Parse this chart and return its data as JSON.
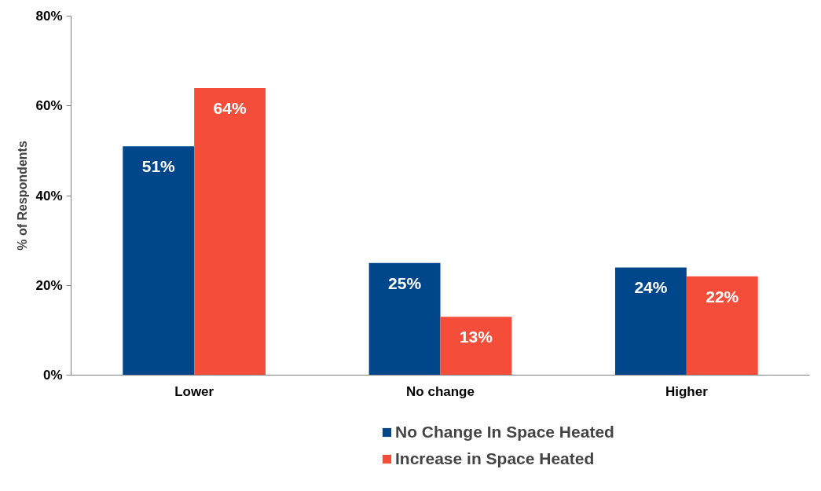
{
  "chart_data": {
    "type": "bar",
    "ylabel": "% of Respondents",
    "categories": [
      "Lower",
      "No change",
      "Higher"
    ],
    "series": [
      {
        "name": "No Change In Space Heated",
        "color": "#00468b",
        "values": [
          51,
          25,
          24
        ],
        "value_labels": [
          "51%",
          "25%",
          "24%"
        ]
      },
      {
        "name": "Increase in Space Heated",
        "color": "#f44e3a",
        "values": [
          64,
          13,
          22
        ],
        "value_labels": [
          "64%",
          "13%",
          "22%"
        ]
      }
    ],
    "ylim": [
      0,
      80
    ],
    "yticks": [
      {
        "value": 0,
        "label": "0%"
      },
      {
        "value": 20,
        "label": "20%"
      },
      {
        "value": 40,
        "label": "40%"
      },
      {
        "value": 60,
        "label": "60%"
      },
      {
        "value": 80,
        "label": "80%"
      }
    ],
    "grid": false,
    "legend": "bottom"
  }
}
